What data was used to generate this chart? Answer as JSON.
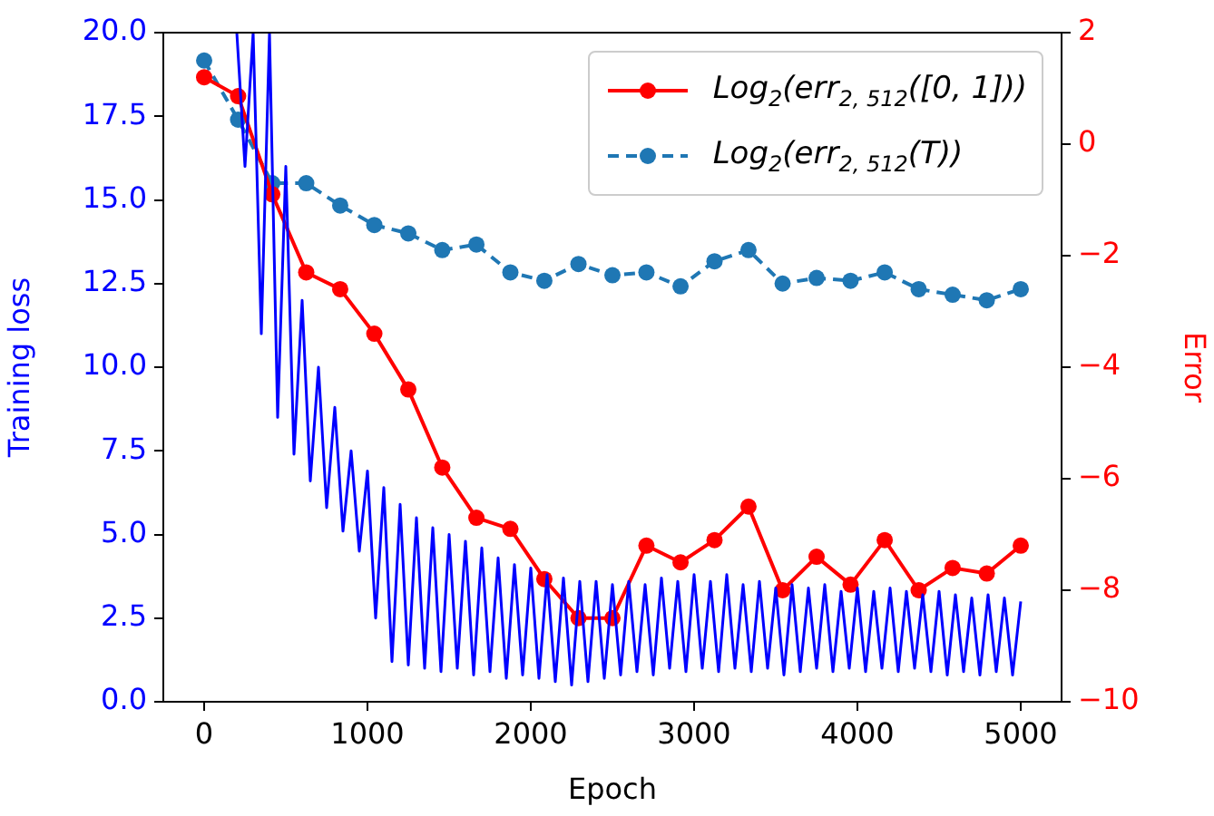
{
  "chart_data": {
    "type": "line",
    "xlabel": "Epoch",
    "ylabel": "Training loss",
    "y2label": "Error",
    "xlim": [
      -250,
      5250
    ],
    "xticks": [
      0,
      1000,
      2000,
      3000,
      4000,
      5000
    ],
    "ylim": [
      0,
      20
    ],
    "yticks": [
      {
        "value": 0,
        "label": "0.0"
      },
      {
        "value": 2.5,
        "label": "2.5"
      },
      {
        "value": 5,
        "label": "5.0"
      },
      {
        "value": 7.5,
        "label": "7.5"
      },
      {
        "value": 10,
        "label": "10.0"
      },
      {
        "value": 12.5,
        "label": "12.5"
      },
      {
        "value": 15,
        "label": "15.0"
      },
      {
        "value": 17.5,
        "label": "17.5"
      },
      {
        "value": 20,
        "label": "20.0"
      }
    ],
    "y2lim": [
      -10,
      2
    ],
    "y2ticks": [
      {
        "value": -10,
        "label": "−10"
      },
      {
        "value": -8,
        "label": "−8"
      },
      {
        "value": -6,
        "label": "−6"
      },
      {
        "value": -4,
        "label": "−4"
      },
      {
        "value": -2,
        "label": "−2"
      },
      0,
      2
    ],
    "grid": false,
    "legend": "top right",
    "marker": "circle",
    "series": [
      {
        "color": "#0000ff",
        "marker": "none",
        "line_style": "solid",
        "x": [
          200,
          250,
          300,
          350,
          400,
          450,
          500,
          550,
          600,
          650,
          700,
          750,
          800,
          850,
          900,
          950,
          1000,
          1050,
          1100,
          1150,
          1200,
          1250,
          1300,
          1350,
          1400,
          1450,
          1500,
          1550,
          1600,
          1650,
          1700,
          1750,
          1800,
          1850,
          1900,
          1950,
          2000,
          2050,
          2100,
          2150,
          2200,
          2250,
          2300,
          2350,
          2400,
          2450,
          2500,
          2550,
          2600,
          2650,
          2700,
          2750,
          2800,
          2850,
          2900,
          2950,
          3000,
          3050,
          3100,
          3150,
          3200,
          3250,
          3300,
          3350,
          3400,
          3450,
          3500,
          3550,
          3600,
          3650,
          3700,
          3750,
          3800,
          3850,
          3900,
          3950,
          4000,
          4050,
          4100,
          4150,
          4200,
          4250,
          4300,
          4350,
          4400,
          4450,
          4500,
          4550,
          4600,
          4650,
          4700,
          4750,
          4800,
          4850,
          4900,
          4950,
          5000
        ],
        "values": [
          20,
          16,
          20,
          11,
          20,
          8.5,
          16,
          7.4,
          12,
          6.6,
          10,
          5.8,
          8.8,
          5.1,
          7.5,
          4.5,
          6.9,
          2.5,
          6.4,
          1.2,
          5.9,
          1.1,
          5.5,
          1.0,
          5.2,
          0.9,
          5.0,
          1.0,
          4.8,
          0.8,
          4.6,
          0.9,
          4.3,
          0.7,
          4.1,
          0.8,
          4.0,
          0.7,
          3.8,
          0.6,
          3.7,
          0.5,
          3.6,
          0.6,
          3.6,
          0.7,
          3.5,
          0.8,
          3.6,
          0.9,
          3.5,
          0.8,
          3.7,
          1.0,
          3.6,
          0.9,
          3.8,
          1.0,
          3.6,
          0.9,
          3.8,
          1.0,
          3.5,
          0.9,
          3.6,
          1.0,
          3.4,
          0.8,
          3.5,
          0.9,
          3.4,
          1.0,
          3.5,
          0.9,
          3.3,
          1.0,
          3.4,
          0.9,
          3.3,
          1.0,
          3.4,
          0.9,
          3.3,
          1.0,
          3.2,
          0.9,
          3.3,
          0.8,
          3.2,
          0.9,
          3.1,
          0.8,
          3.2,
          0.9,
          3.1,
          0.8,
          3.0
        ]
      },
      {
        "name": "Log$_{2}$(err$_{2, 512}$([0, 1]))",
        "color": "#ff0000",
        "axis": "y2",
        "line_style": "solid",
        "x": [
          0,
          208,
          417,
          625,
          833,
          1042,
          1250,
          1458,
          1667,
          1875,
          2083,
          2292,
          2500,
          2708,
          2917,
          3125,
          3333,
          3542,
          3750,
          3958,
          4167,
          4375,
          4583,
          4792,
          5000
        ],
        "values": [
          1.2,
          0.86,
          -0.9,
          -2.3,
          -2.6,
          -3.4,
          -4.4,
          -5.8,
          -6.7,
          -6.9,
          -7.8,
          -8.5,
          -8.5,
          -7.2,
          -7.5,
          -7.1,
          -6.5,
          -8.0,
          -7.4,
          -7.9,
          -7.1,
          -8.0,
          -7.6,
          -7.7,
          -7.2
        ]
      },
      {
        "name": "Log$_{2}$(err$_{2, 512}$(T))",
        "color": "#1f77b4",
        "axis": "y2",
        "line_style": "dashed",
        "x": [
          0,
          208,
          417,
          625,
          833,
          1042,
          1250,
          1458,
          1667,
          1875,
          2083,
          2292,
          2500,
          2708,
          2917,
          3125,
          3333,
          3542,
          3750,
          3958,
          4167,
          4375,
          4583,
          4792,
          5000
        ],
        "values": [
          1.5,
          0.44,
          -0.7,
          -0.7,
          -1.1,
          -1.45,
          -1.6,
          -1.9,
          -1.8,
          -2.3,
          -2.45,
          -2.15,
          -2.35,
          -2.3,
          -2.55,
          -2.1,
          -1.9,
          -2.5,
          -2.4,
          -2.45,
          -2.3,
          -2.6,
          -2.7,
          -2.8,
          -2.6
        ]
      }
    ]
  }
}
